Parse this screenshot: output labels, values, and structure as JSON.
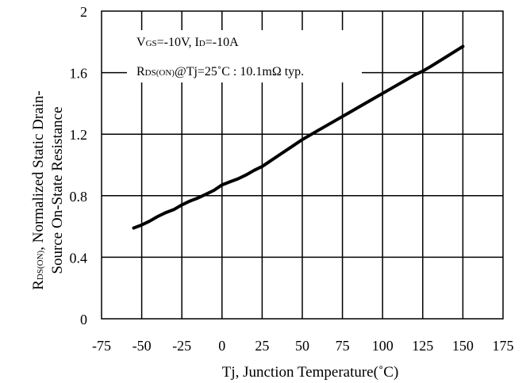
{
  "chart_data": {
    "type": "line",
    "xlabel": "Tj, Junction Temperature(˚C)",
    "ylabel_line1": "RDS(ON), Normalized Static Drain-",
    "ylabel_line2": "Source On-State Resistance",
    "xlim": [
      -75,
      175
    ],
    "ylim": [
      0,
      2
    ],
    "xticks": [
      "-75",
      "-50",
      "-25",
      "0",
      "25",
      "50",
      "75",
      "100",
      "125",
      "150",
      "175"
    ],
    "yticks": [
      "0",
      "0.4",
      "0.8",
      "1.2",
      "1.6",
      "2"
    ],
    "grid": true,
    "annotations": [
      "VGS=-10V, ID=-10A",
      "RDS(ON)@Tj=25˚C : 10.1mΩ typ."
    ],
    "series": [
      {
        "x": [
          -55,
          -50,
          -45,
          -40,
          -35,
          -30,
          -25,
          -20,
          -15,
          -10,
          -5,
          0,
          5,
          10,
          15,
          20,
          25,
          30,
          35,
          40,
          45,
          50,
          55,
          60,
          70,
          80,
          90,
          100,
          110,
          120,
          125,
          130,
          140,
          150
        ],
        "y": [
          0.59,
          0.61,
          0.635,
          0.665,
          0.69,
          0.71,
          0.74,
          0.765,
          0.785,
          0.81,
          0.835,
          0.87,
          0.89,
          0.91,
          0.935,
          0.965,
          0.99,
          1.025,
          1.06,
          1.095,
          1.13,
          1.165,
          1.195,
          1.225,
          1.285,
          1.345,
          1.405,
          1.465,
          1.525,
          1.585,
          1.61,
          1.64,
          1.705,
          1.77
        ]
      }
    ]
  }
}
